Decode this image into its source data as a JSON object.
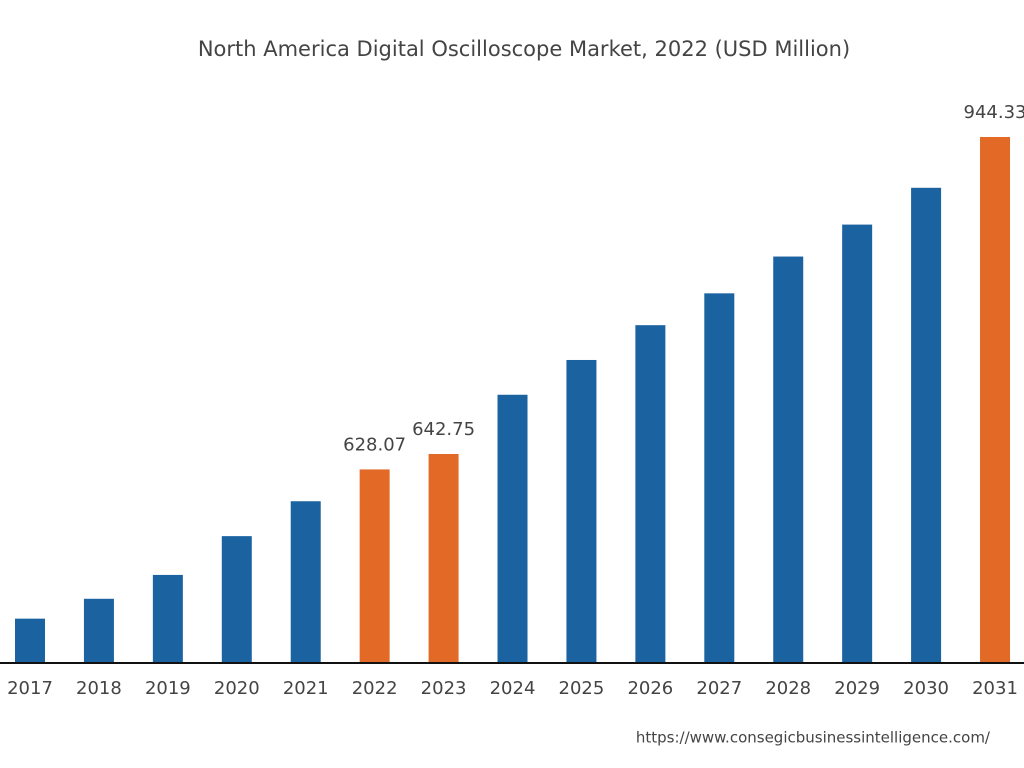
{
  "chart_data": {
    "type": "bar",
    "title": "North America Digital Oscilloscope Market, 2022 (USD Million)",
    "categories": [
      "2017",
      "2018",
      "2019",
      "2020",
      "2021",
      "2022",
      "2023",
      "2024",
      "2025",
      "2026",
      "2027",
      "2028",
      "2029",
      "2030",
      "2031"
    ],
    "values": [
      486.1,
      505.0,
      527.7,
      564.6,
      597.8,
      628.07,
      642.75,
      699.1,
      732.2,
      765.3,
      795.6,
      830.6,
      861.0,
      896.0,
      944.33
    ],
    "value_labels": [
      null,
      null,
      null,
      null,
      null,
      "628.07",
      "642.75",
      null,
      null,
      null,
      null,
      null,
      null,
      null,
      "944.33"
    ],
    "colors": [
      "#1a62a0",
      "#1a62a0",
      "#1a62a0",
      "#1a62a0",
      "#1a62a0",
      "#e36a26",
      "#e36a26",
      "#1a62a0",
      "#1a62a0",
      "#1a62a0",
      "#1a62a0",
      "#1a62a0",
      "#1a62a0",
      "#1a62a0",
      "#e36a26"
    ],
    "source": "https://www.consegicbusinessintelligence.com/"
  }
}
